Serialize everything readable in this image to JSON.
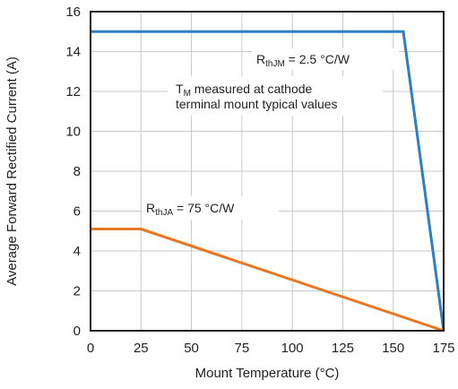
{
  "chart_data": {
    "type": "line",
    "xlabel": "Mount Temperature (°C)",
    "ylabel": "Average Forward Rectified Current (A)",
    "xlim": [
      0,
      175
    ],
    "ylim": [
      0,
      16
    ],
    "x_ticks": [
      0,
      25,
      50,
      75,
      100,
      125,
      150,
      175
    ],
    "y_ticks": [
      0,
      2,
      4,
      6,
      8,
      10,
      12,
      14,
      16
    ],
    "grid": true,
    "series": [
      {
        "color": "#2b7fc2",
        "x": [
          0,
          155,
          175
        ],
        "y": [
          15,
          15,
          0
        ]
      },
      {
        "color": "#e87722",
        "x": [
          0,
          25,
          175
        ],
        "y": [
          5.1,
          5.1,
          0
        ]
      }
    ],
    "annotations": {
      "rthjm": {
        "main": "R",
        "sub": "thJM",
        "rest": " = 2.5 °C/W"
      },
      "tm": {
        "main": "T",
        "sub": "M",
        "rest": " measured at cathode",
        "line2": "terminal mount typical values"
      },
      "rthja": {
        "main": "R",
        "sub": "thJA",
        "rest": " = 75 °C/W"
      }
    }
  }
}
